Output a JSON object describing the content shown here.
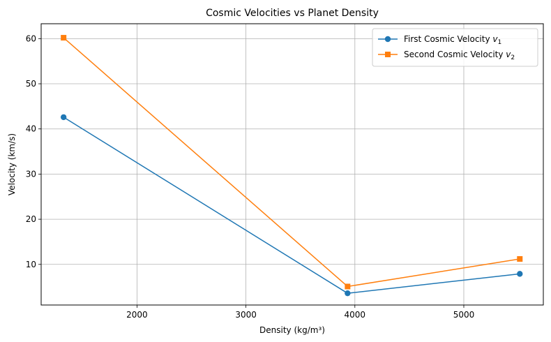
{
  "chart_data": {
    "type": "line",
    "title": "Cosmic Velocities vs Planet Density",
    "xlabel": "Density (kg/m³)",
    "ylabel": "Velocity (km/s)",
    "xlim": [
      1120,
      5730
    ],
    "ylim": [
      1.0,
      63.3
    ],
    "xticks": [
      2000,
      3000,
      4000,
      5000
    ],
    "yticks": [
      10,
      20,
      30,
      40,
      50,
      60
    ],
    "grid": true,
    "legend_position": "top-right",
    "x": [
      1326,
      3933,
      5514
    ],
    "series": [
      {
        "name": "First Cosmic Velocity",
        "name_subscript": "1",
        "name_symbol": "v",
        "marker": "circle",
        "color": "#1f77b4",
        "values": [
          42.6,
          3.6,
          7.9
        ]
      },
      {
        "name": "Second Cosmic Velocity",
        "name_subscript": "2",
        "name_symbol": "v",
        "marker": "square",
        "color": "#ff7f0e",
        "values": [
          60.2,
          5.1,
          11.2
        ]
      }
    ]
  }
}
